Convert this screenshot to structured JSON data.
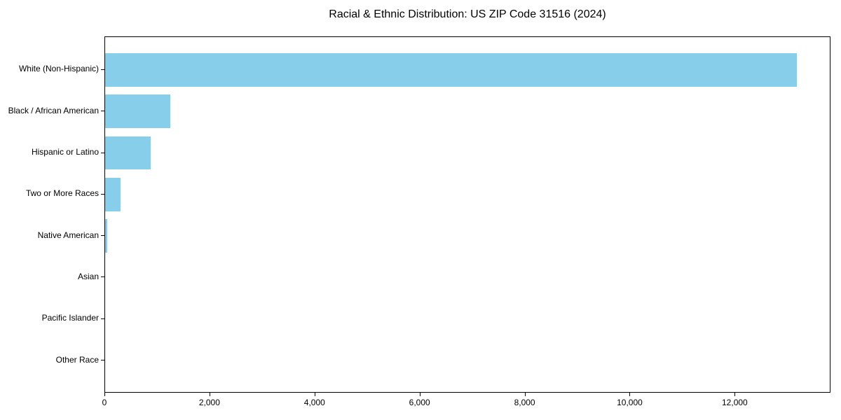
{
  "chart_data": {
    "type": "bar",
    "orientation": "horizontal",
    "title": "Racial & Ethnic Distribution: US ZIP Code 31516 (2024)",
    "categories": [
      "White (Non-Hispanic)",
      "Black / African American",
      "Hispanic or Latino",
      "Two or More Races",
      "Native American",
      "Asian",
      "Pacific Islander",
      "Other Race"
    ],
    "values": [
      13165,
      1240,
      867,
      295,
      45,
      0,
      0,
      0
    ],
    "xlabel": "",
    "ylabel": "",
    "xlim": [
      0,
      13823
    ],
    "xticks": [
      0,
      2000,
      4000,
      6000,
      8000,
      10000,
      12000
    ],
    "xtick_labels": [
      "0",
      "2,000",
      "4,000",
      "6,000",
      "8,000",
      "10,000",
      "12,000"
    ],
    "bar_color": "#87CEEB",
    "grid": false,
    "legend_position": "none"
  }
}
